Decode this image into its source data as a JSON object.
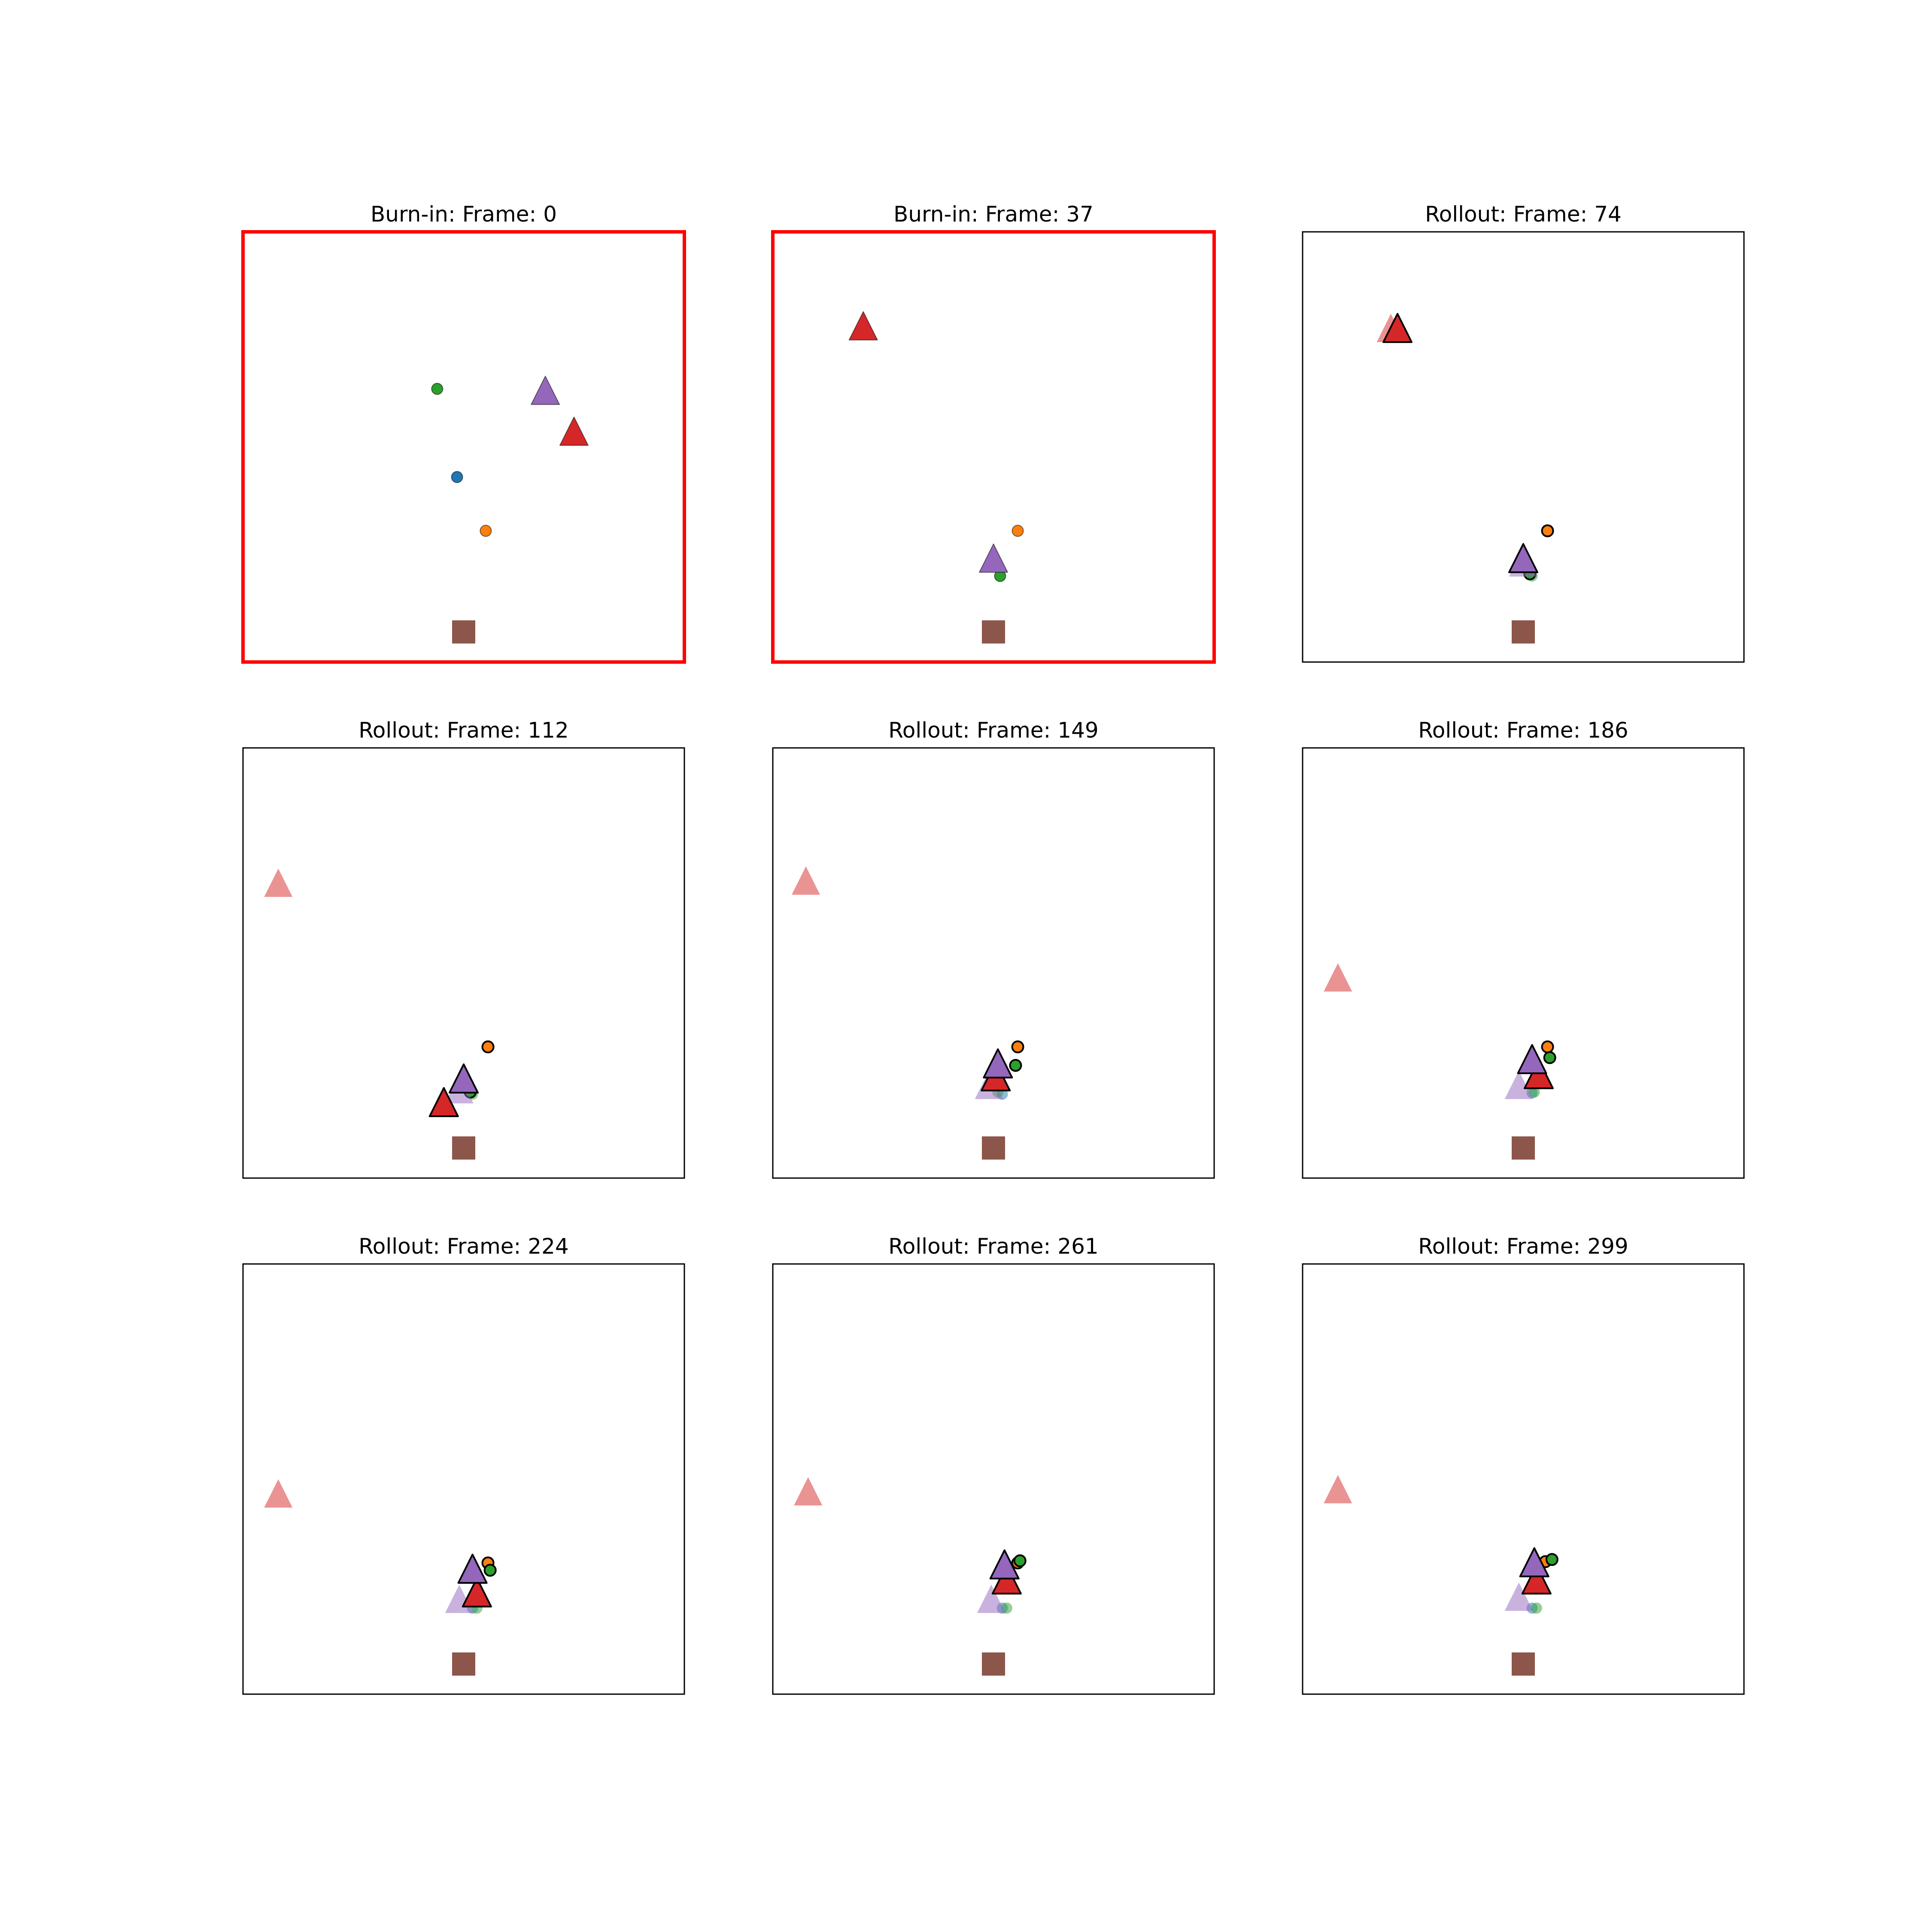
{
  "figure": {
    "grid": [
      3,
      3
    ],
    "highlight_color": "#ff0000",
    "colors": {
      "blue": "#1f77b4",
      "orange": "#ff7f0e",
      "green": "#2ca02c",
      "red": "#d62728",
      "purple": "#9467bd",
      "brown": "#8c564b"
    }
  },
  "chart_data": [
    {
      "type": "scatter",
      "title": "Burn-in: Frame: 0",
      "highlighted": true,
      "xlim": [
        0,
        1
      ],
      "ylim": [
        0,
        1
      ],
      "axes_ticks": false,
      "grid": false,
      "series": [
        {
          "marker": "circle",
          "color": "green",
          "alpha": 1,
          "outline": false,
          "x": [
            0.44
          ],
          "y": [
            0.635
          ]
        },
        {
          "marker": "circle",
          "color": "blue",
          "alpha": 1,
          "outline": false,
          "x": [
            0.485
          ],
          "y": [
            0.43
          ]
        },
        {
          "marker": "circle",
          "color": "orange",
          "alpha": 1,
          "outline": false,
          "x": [
            0.55
          ],
          "y": [
            0.305
          ]
        },
        {
          "marker": "triangle",
          "color": "purple",
          "alpha": 1,
          "outline": false,
          "x": [
            0.685
          ],
          "y": [
            0.625
          ]
        },
        {
          "marker": "triangle",
          "color": "red",
          "alpha": 1,
          "outline": false,
          "x": [
            0.75
          ],
          "y": [
            0.53
          ]
        },
        {
          "marker": "square",
          "color": "brown",
          "alpha": 1,
          "outline": false,
          "x": [
            0.5
          ],
          "y": [
            0.07
          ]
        }
      ]
    },
    {
      "type": "scatter",
      "title": "Burn-in: Frame: 37",
      "highlighted": true,
      "xlim": [
        0,
        1
      ],
      "ylim": [
        0,
        1
      ],
      "axes_ticks": false,
      "grid": false,
      "series": [
        {
          "marker": "triangle",
          "color": "red",
          "alpha": 1,
          "outline": false,
          "x": [
            0.205
          ],
          "y": [
            0.775
          ]
        },
        {
          "marker": "circle",
          "color": "orange",
          "alpha": 1,
          "outline": false,
          "x": [
            0.555
          ],
          "y": [
            0.305
          ]
        },
        {
          "marker": "circle",
          "color": "green",
          "alpha": 1,
          "outline": false,
          "x": [
            0.515
          ],
          "y": [
            0.2
          ]
        },
        {
          "marker": "triangle",
          "color": "purple",
          "alpha": 1,
          "outline": false,
          "x": [
            0.5
          ],
          "y": [
            0.235
          ]
        },
        {
          "marker": "square",
          "color": "brown",
          "alpha": 1,
          "outline": false,
          "x": [
            0.5
          ],
          "y": [
            0.07
          ]
        }
      ]
    },
    {
      "type": "scatter",
      "title": "Rollout: Frame: 74",
      "highlighted": false,
      "xlim": [
        0,
        1
      ],
      "ylim": [
        0,
        1
      ],
      "axes_ticks": false,
      "grid": false,
      "series": [
        {
          "marker": "triangle",
          "color": "red",
          "alpha": 0.5,
          "outline": false,
          "x": [
            0.2
          ],
          "y": [
            0.77
          ]
        },
        {
          "marker": "triangle",
          "color": "red",
          "alpha": 1,
          "outline": true,
          "x": [
            0.215
          ],
          "y": [
            0.77
          ]
        },
        {
          "marker": "circle",
          "color": "orange",
          "alpha": 1,
          "outline": true,
          "x": [
            0.555
          ],
          "y": [
            0.305
          ]
        },
        {
          "marker": "circle",
          "color": "green",
          "alpha": 0.5,
          "outline": false,
          "x": [
            0.52
          ],
          "y": [
            0.2
          ]
        },
        {
          "marker": "circle",
          "color": "green",
          "alpha": 1,
          "outline": true,
          "x": [
            0.515
          ],
          "y": [
            0.205
          ]
        },
        {
          "marker": "triangle",
          "color": "purple",
          "alpha": 0.5,
          "outline": false,
          "x": [
            0.5
          ],
          "y": [
            0.225
          ]
        },
        {
          "marker": "triangle",
          "color": "purple",
          "alpha": 1,
          "outline": true,
          "x": [
            0.5
          ],
          "y": [
            0.235
          ]
        },
        {
          "marker": "square",
          "color": "brown",
          "alpha": 1,
          "outline": false,
          "x": [
            0.5
          ],
          "y": [
            0.07
          ]
        }
      ]
    },
    {
      "type": "scatter",
      "title": "Rollout: Frame: 112",
      "highlighted": false,
      "xlim": [
        0,
        1
      ],
      "ylim": [
        0,
        1
      ],
      "axes_ticks": false,
      "grid": false,
      "series": [
        {
          "marker": "triangle",
          "color": "red",
          "alpha": 0.5,
          "outline": false,
          "x": [
            0.08
          ],
          "y": [
            0.68
          ]
        },
        {
          "marker": "circle",
          "color": "orange",
          "alpha": 1,
          "outline": true,
          "x": [
            0.555
          ],
          "y": [
            0.305
          ]
        },
        {
          "marker": "circle",
          "color": "green",
          "alpha": 0.5,
          "outline": false,
          "x": [
            0.52
          ],
          "y": [
            0.195
          ]
        },
        {
          "marker": "circle",
          "color": "green",
          "alpha": 1,
          "outline": true,
          "x": [
            0.515
          ],
          "y": [
            0.2
          ]
        },
        {
          "marker": "triangle",
          "color": "purple",
          "alpha": 0.5,
          "outline": false,
          "x": [
            0.49
          ],
          "y": [
            0.2
          ]
        },
        {
          "marker": "triangle",
          "color": "purple",
          "alpha": 1,
          "outline": true,
          "x": [
            0.5
          ],
          "y": [
            0.225
          ]
        },
        {
          "marker": "triangle",
          "color": "red",
          "alpha": 1,
          "outline": true,
          "x": [
            0.455
          ],
          "y": [
            0.17
          ]
        },
        {
          "marker": "square",
          "color": "brown",
          "alpha": 1,
          "outline": false,
          "x": [
            0.5
          ],
          "y": [
            0.07
          ]
        }
      ]
    },
    {
      "type": "scatter",
      "title": "Rollout: Frame: 149",
      "highlighted": false,
      "xlim": [
        0,
        1
      ],
      "ylim": [
        0,
        1
      ],
      "axes_ticks": false,
      "grid": false,
      "series": [
        {
          "marker": "triangle",
          "color": "red",
          "alpha": 0.5,
          "outline": false,
          "x": [
            0.075
          ],
          "y": [
            0.685
          ]
        },
        {
          "marker": "circle",
          "color": "orange",
          "alpha": 1,
          "outline": true,
          "x": [
            0.555
          ],
          "y": [
            0.305
          ]
        },
        {
          "marker": "circle",
          "color": "green",
          "alpha": 1,
          "outline": true,
          "x": [
            0.55
          ],
          "y": [
            0.262
          ]
        },
        {
          "marker": "circle",
          "color": "blue",
          "alpha": 0.5,
          "outline": false,
          "x": [
            0.52
          ],
          "y": [
            0.195
          ]
        },
        {
          "marker": "circle",
          "color": "green",
          "alpha": 0.5,
          "outline": false,
          "x": [
            0.51
          ],
          "y": [
            0.2
          ]
        },
        {
          "marker": "triangle",
          "color": "purple",
          "alpha": 0.5,
          "outline": false,
          "x": [
            0.49
          ],
          "y": [
            0.21
          ]
        },
        {
          "marker": "triangle",
          "color": "red",
          "alpha": 1,
          "outline": true,
          "x": [
            0.505
          ],
          "y": [
            0.23
          ]
        },
        {
          "marker": "triangle",
          "color": "purple",
          "alpha": 1,
          "outline": true,
          "x": [
            0.51
          ],
          "y": [
            0.26
          ]
        },
        {
          "marker": "square",
          "color": "brown",
          "alpha": 1,
          "outline": false,
          "x": [
            0.5
          ],
          "y": [
            0.07
          ]
        }
      ]
    },
    {
      "type": "scatter",
      "title": "Rollout: Frame: 186",
      "highlighted": false,
      "xlim": [
        0,
        1
      ],
      "ylim": [
        0,
        1
      ],
      "axes_ticks": false,
      "grid": false,
      "series": [
        {
          "marker": "triangle",
          "color": "red",
          "alpha": 0.5,
          "outline": false,
          "x": [
            0.08
          ],
          "y": [
            0.46
          ]
        },
        {
          "marker": "circle",
          "color": "orange",
          "alpha": 1,
          "outline": true,
          "x": [
            0.555
          ],
          "y": [
            0.305
          ]
        },
        {
          "marker": "circle",
          "color": "green",
          "alpha": 1,
          "outline": true,
          "x": [
            0.56
          ],
          "y": [
            0.28
          ]
        },
        {
          "marker": "circle",
          "color": "blue",
          "alpha": 0.5,
          "outline": false,
          "x": [
            0.52
          ],
          "y": [
            0.198
          ]
        },
        {
          "marker": "circle",
          "color": "green",
          "alpha": 0.5,
          "outline": false,
          "x": [
            0.525
          ],
          "y": [
            0.2
          ]
        },
        {
          "marker": "triangle",
          "color": "purple",
          "alpha": 0.5,
          "outline": false,
          "x": [
            0.49
          ],
          "y": [
            0.21
          ]
        },
        {
          "marker": "triangle",
          "color": "red",
          "alpha": 1,
          "outline": true,
          "x": [
            0.535
          ],
          "y": [
            0.235
          ]
        },
        {
          "marker": "triangle",
          "color": "purple",
          "alpha": 1,
          "outline": true,
          "x": [
            0.52
          ],
          "y": [
            0.27
          ]
        },
        {
          "marker": "square",
          "color": "brown",
          "alpha": 1,
          "outline": false,
          "x": [
            0.5
          ],
          "y": [
            0.07
          ]
        }
      ]
    },
    {
      "type": "scatter",
      "title": "Rollout: Frame: 224",
      "highlighted": false,
      "xlim": [
        0,
        1
      ],
      "ylim": [
        0,
        1
      ],
      "axes_ticks": false,
      "grid": false,
      "series": [
        {
          "marker": "triangle",
          "color": "red",
          "alpha": 0.5,
          "outline": false,
          "x": [
            0.08
          ],
          "y": [
            0.46
          ]
        },
        {
          "marker": "circle",
          "color": "orange",
          "alpha": 1,
          "outline": true,
          "x": [
            0.555
          ],
          "y": [
            0.305
          ]
        },
        {
          "marker": "circle",
          "color": "green",
          "alpha": 1,
          "outline": true,
          "x": [
            0.56
          ],
          "y": [
            0.288
          ]
        },
        {
          "marker": "circle",
          "color": "blue",
          "alpha": 0.5,
          "outline": false,
          "x": [
            0.52
          ],
          "y": [
            0.2
          ]
        },
        {
          "marker": "circle",
          "color": "green",
          "alpha": 0.5,
          "outline": false,
          "x": [
            0.53
          ],
          "y": [
            0.2
          ]
        },
        {
          "marker": "triangle",
          "color": "purple",
          "alpha": 0.5,
          "outline": false,
          "x": [
            0.49
          ],
          "y": [
            0.215
          ]
        },
        {
          "marker": "triangle",
          "color": "red",
          "alpha": 1,
          "outline": true,
          "x": [
            0.53
          ],
          "y": [
            0.23
          ]
        },
        {
          "marker": "triangle",
          "color": "purple",
          "alpha": 1,
          "outline": true,
          "x": [
            0.52
          ],
          "y": [
            0.285
          ]
        },
        {
          "marker": "square",
          "color": "brown",
          "alpha": 1,
          "outline": false,
          "x": [
            0.5
          ],
          "y": [
            0.07
          ]
        }
      ]
    },
    {
      "type": "scatter",
      "title": "Rollout: Frame: 261",
      "highlighted": false,
      "xlim": [
        0,
        1
      ],
      "ylim": [
        0,
        1
      ],
      "axes_ticks": false,
      "grid": false,
      "series": [
        {
          "marker": "triangle",
          "color": "red",
          "alpha": 0.5,
          "outline": false,
          "x": [
            0.08
          ],
          "y": [
            0.465
          ]
        },
        {
          "marker": "circle",
          "color": "orange",
          "alpha": 1,
          "outline": true,
          "x": [
            0.555
          ],
          "y": [
            0.305
          ]
        },
        {
          "marker": "circle",
          "color": "green",
          "alpha": 1,
          "outline": true,
          "x": [
            0.56
          ],
          "y": [
            0.31
          ]
        },
        {
          "marker": "circle",
          "color": "blue",
          "alpha": 0.5,
          "outline": false,
          "x": [
            0.52
          ],
          "y": [
            0.2
          ]
        },
        {
          "marker": "circle",
          "color": "green",
          "alpha": 0.5,
          "outline": false,
          "x": [
            0.53
          ],
          "y": [
            0.2
          ]
        },
        {
          "marker": "triangle",
          "color": "purple",
          "alpha": 0.5,
          "outline": false,
          "x": [
            0.495
          ],
          "y": [
            0.215
          ]
        },
        {
          "marker": "triangle",
          "color": "red",
          "alpha": 1,
          "outline": true,
          "x": [
            0.53
          ],
          "y": [
            0.26
          ]
        },
        {
          "marker": "triangle",
          "color": "purple",
          "alpha": 1,
          "outline": true,
          "x": [
            0.525
          ],
          "y": [
            0.295
          ]
        },
        {
          "marker": "square",
          "color": "brown",
          "alpha": 1,
          "outline": false,
          "x": [
            0.5
          ],
          "y": [
            0.07
          ]
        }
      ]
    },
    {
      "type": "scatter",
      "title": "Rollout: Frame: 299",
      "highlighted": false,
      "xlim": [
        0,
        1
      ],
      "ylim": [
        0,
        1
      ],
      "axes_ticks": false,
      "grid": false,
      "series": [
        {
          "marker": "triangle",
          "color": "red",
          "alpha": 0.5,
          "outline": false,
          "x": [
            0.08
          ],
          "y": [
            0.47
          ]
        },
        {
          "marker": "circle",
          "color": "orange",
          "alpha": 1,
          "outline": true,
          "x": [
            0.55
          ],
          "y": [
            0.308
          ]
        },
        {
          "marker": "circle",
          "color": "green",
          "alpha": 1,
          "outline": true,
          "x": [
            0.565
          ],
          "y": [
            0.313
          ]
        },
        {
          "marker": "circle",
          "color": "blue",
          "alpha": 0.5,
          "outline": false,
          "x": [
            0.52
          ],
          "y": [
            0.2
          ]
        },
        {
          "marker": "circle",
          "color": "green",
          "alpha": 0.5,
          "outline": false,
          "x": [
            0.53
          ],
          "y": [
            0.2
          ]
        },
        {
          "marker": "triangle",
          "color": "purple",
          "alpha": 0.5,
          "outline": false,
          "x": [
            0.49
          ],
          "y": [
            0.22
          ]
        },
        {
          "marker": "triangle",
          "color": "red",
          "alpha": 1,
          "outline": true,
          "x": [
            0.53
          ],
          "y": [
            0.26
          ]
        },
        {
          "marker": "triangle",
          "color": "purple",
          "alpha": 1,
          "outline": true,
          "x": [
            0.525
          ],
          "y": [
            0.3
          ]
        },
        {
          "marker": "square",
          "color": "brown",
          "alpha": 1,
          "outline": false,
          "x": [
            0.5
          ],
          "y": [
            0.07
          ]
        }
      ]
    }
  ]
}
